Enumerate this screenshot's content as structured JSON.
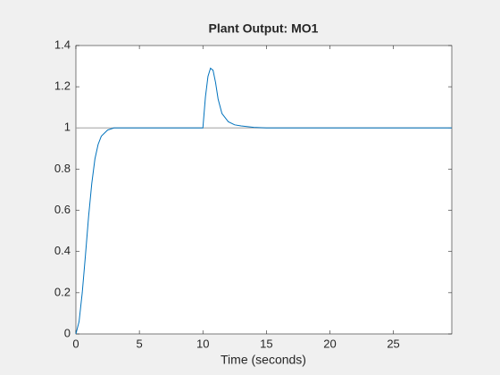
{
  "chart_data": {
    "type": "line",
    "title": "Plant Output:  MO1",
    "x_label": "Time (seconds)",
    "xlim": [
      0,
      29.6
    ],
    "ylim": [
      0,
      1.4
    ],
    "xticks": [
      0,
      5,
      10,
      15,
      20,
      25
    ],
    "yticks": [
      0,
      0.2,
      0.4,
      0.6,
      0.8,
      1,
      1.2,
      1.4
    ],
    "grid": false,
    "series": [
      {
        "color": "#a0a0a0",
        "x": [
          0,
          29.6
        ],
        "values": [
          1,
          1
        ]
      },
      {
        "color": "#0072bd",
        "x": [
          0,
          0.25,
          0.5,
          0.75,
          1,
          1.25,
          1.5,
          1.75,
          2,
          2.5,
          3,
          4,
          5,
          10,
          10.2,
          10.4,
          10.6,
          10.8,
          11,
          11.2,
          11.5,
          12,
          12.5,
          13,
          14,
          15,
          20,
          29.6
        ],
        "values": [
          0,
          0.06,
          0.2,
          0.38,
          0.57,
          0.73,
          0.85,
          0.92,
          0.96,
          0.99,
          1,
          1,
          1,
          1,
          1.15,
          1.25,
          1.29,
          1.28,
          1.22,
          1.14,
          1.07,
          1.03,
          1.015,
          1.01,
          1.003,
          1,
          1,
          1
        ]
      }
    ]
  }
}
